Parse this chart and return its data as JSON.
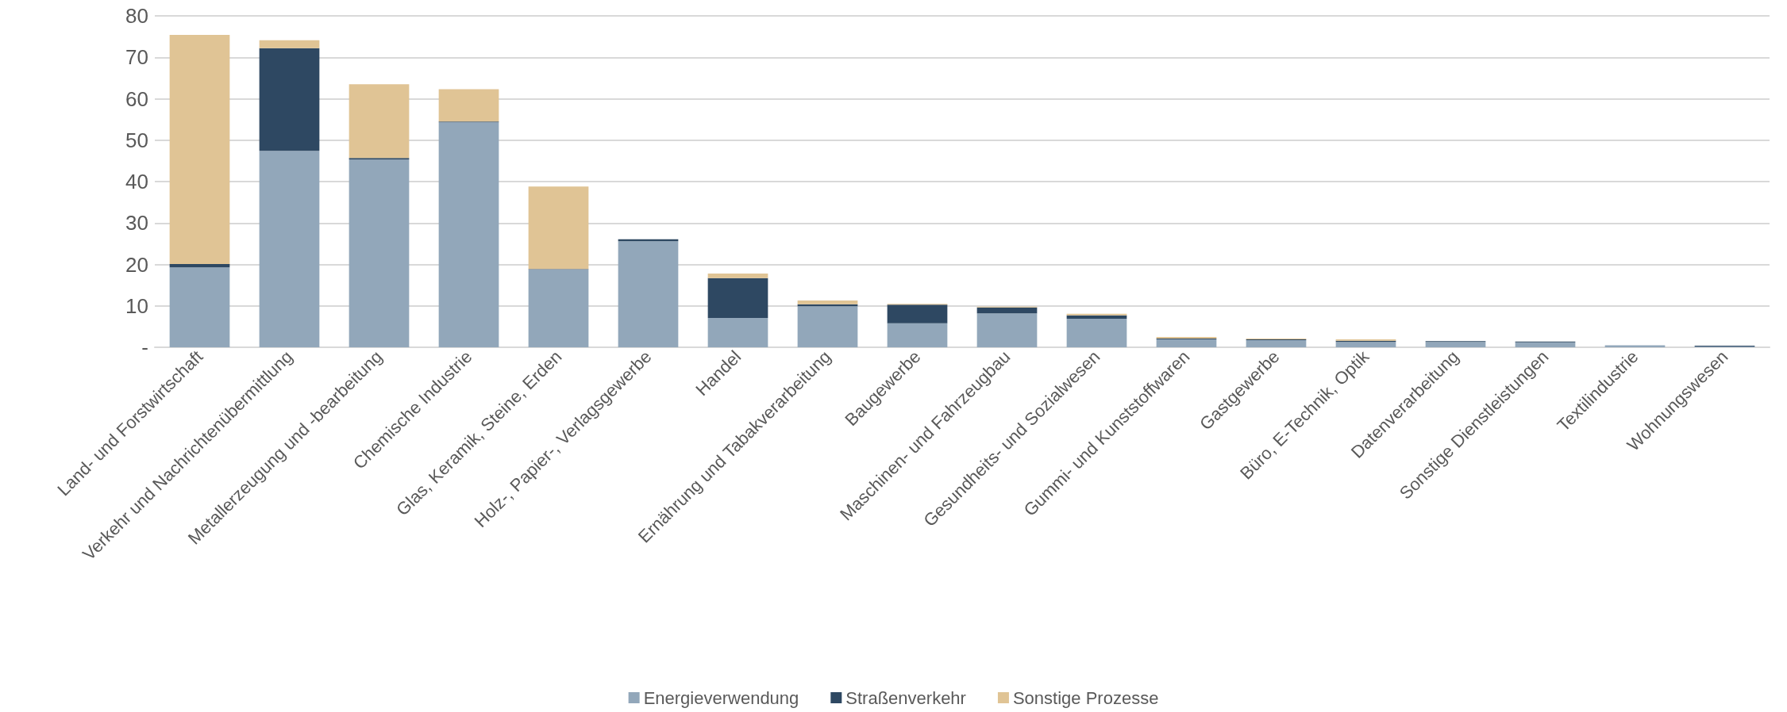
{
  "chart_data": {
    "type": "bar",
    "stacked": true,
    "categories": [
      "Land- und Forstwirtschaft",
      "Verkehr und Nachrichtenübermittlung",
      "Metallerzeugung und -bearbeitung",
      "Chemische Industrie",
      "Glas, Keramik, Steine, Erden",
      "Holz-, Papier-, Verlagsgewerbe",
      "Handel",
      "Ernährung und Tabakverarbeitung",
      "Baugewerbe",
      "Maschinen- und Fahrzeugbau",
      "Gesundheits- und Sozialwesen",
      "Gummi- und Kunststoffwaren",
      "Gastgewerbe",
      "Büro, E-Technik, Optik",
      "Datenverarbeitung",
      "Sonstige Dienstleistungen",
      "Textilindustrie",
      "Wohnungswesen"
    ],
    "series": [
      {
        "name": "Energieverwendung",
        "color": "#92a7ba",
        "values": [
          19.3,
          47.4,
          45.3,
          54.3,
          18.8,
          25.6,
          7.1,
          9.9,
          5.8,
          8.2,
          6.9,
          1.9,
          1.7,
          1.3,
          1.3,
          1.2,
          0.5,
          0.2
        ]
      },
      {
        "name": "Straßenverkehr",
        "color": "#2e4862",
        "values": [
          0.8,
          24.8,
          0.4,
          0.2,
          0.1,
          0.5,
          9.6,
          0.5,
          4.5,
          1.4,
          0.8,
          0.2,
          0.2,
          0.3,
          0.2,
          0.2,
          0,
          0.2
        ]
      },
      {
        "name": "Sonstige Prozesse",
        "color": "#e0c495",
        "values": [
          55.3,
          1.9,
          17.8,
          7.8,
          19.9,
          0,
          1.1,
          0.9,
          0.2,
          0.2,
          0.4,
          0.4,
          0.2,
          0.3,
          0,
          0,
          0,
          0
        ]
      }
    ],
    "ylim": [
      0,
      80
    ],
    "yticks": [
      {
        "value": 0,
        "label": "-"
      },
      10,
      20,
      30,
      40,
      50,
      60,
      70,
      80
    ],
    "grid": "y",
    "legend": "bottom"
  }
}
